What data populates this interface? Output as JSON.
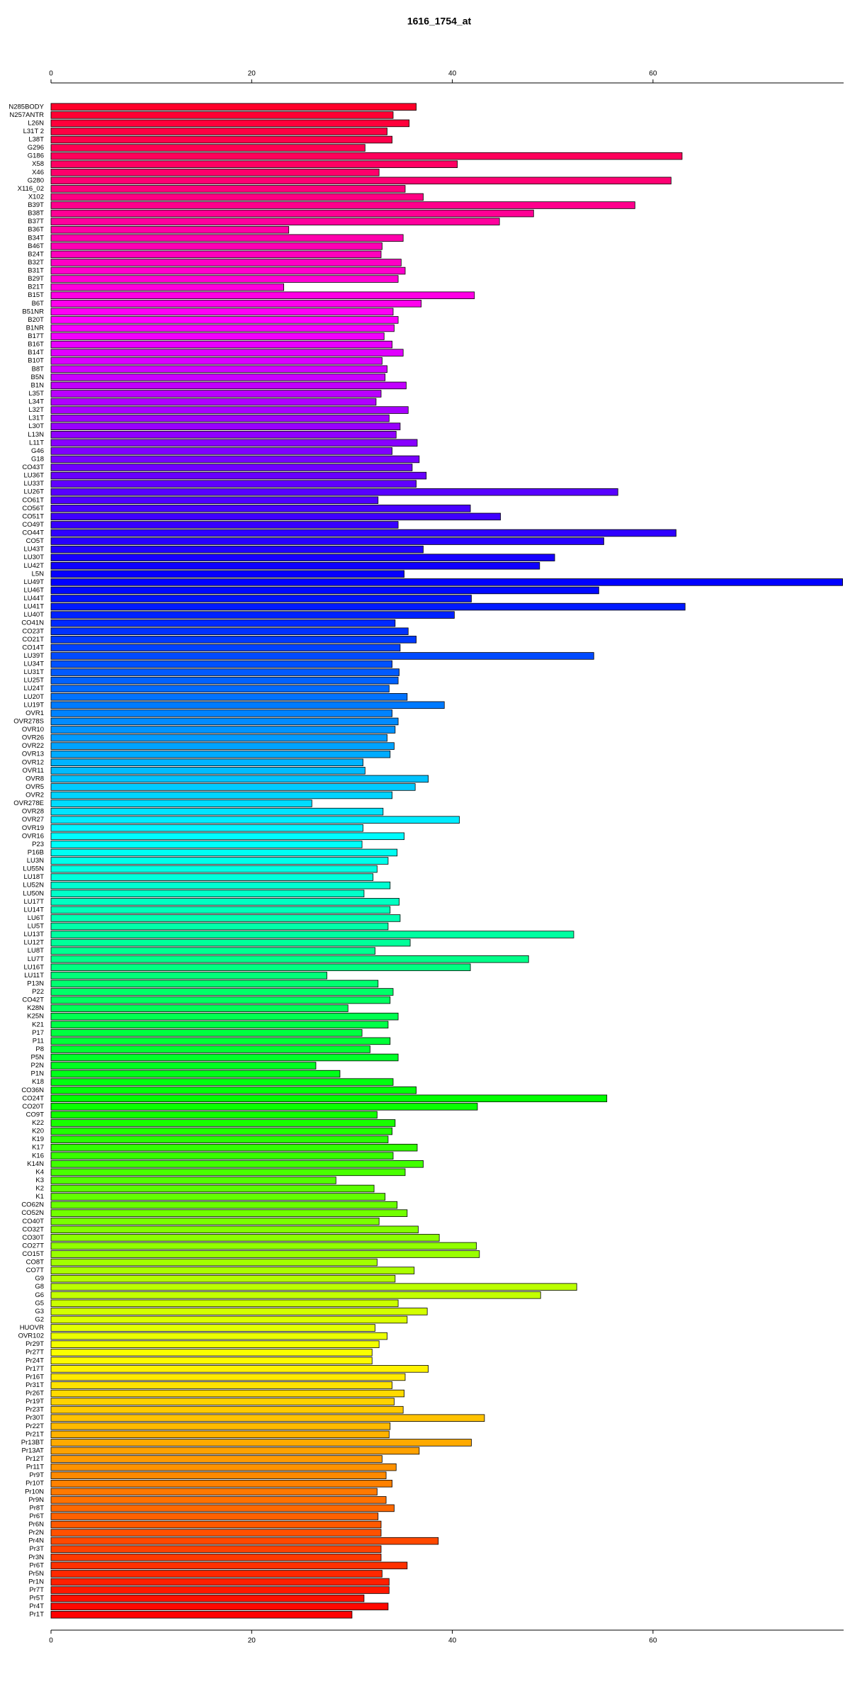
{
  "chart_data": {
    "type": "barh",
    "title": "1616_1754_at",
    "categories": [
      "N285BODY",
      "N257ANTR",
      "L26N",
      "L31T 2",
      "L38T",
      "G296",
      "G186",
      "X58",
      "X46",
      "G280",
      "X116_02",
      "X102",
      "B39T",
      "B38T",
      "B37T",
      "B36T",
      "B34T",
      "B46T",
      "B24T",
      "B32T",
      "B31T",
      "B29T",
      "B21T",
      "B15T",
      "B6T",
      "B51NR",
      "B20T",
      "B1NR",
      "B17T",
      "B16T",
      "B14T",
      "B10T",
      "B8T",
      "B5N",
      "B1N",
      "L35T",
      "L34T",
      "L32T",
      "L31T",
      "L30T",
      "L13N",
      "L11T",
      "G46",
      "G18",
      "CO43T",
      "LU36T",
      "LU33T",
      "LU26T",
      "CO61T",
      "CO56T",
      "CO51T",
      "CO49T",
      "CO44T",
      "CO5T",
      "LU43T",
      "LU30T",
      "LU42T",
      "L5N",
      "LU49T",
      "LU46T",
      "LU44T",
      "LU41T",
      "LU40T",
      "CO41N",
      "CO23T",
      "CO21T",
      "CO14T",
      "LU39T",
      "LU34T",
      "LU31T",
      "LU25T",
      "LU24T",
      "LU20T",
      "LU19T",
      "OVR1",
      "OVR278S",
      "OVR10",
      "OVR26",
      "OVR22",
      "OVR13",
      "OVR12",
      "OVR11",
      "OVR8",
      "OVR5",
      "OVR2",
      "OVR278E",
      "OVR28",
      "OVR27",
      "OVR19",
      "OVR16",
      "P23",
      "P16B",
      "LU3N",
      "LU55N",
      "LU18T",
      "LU52N",
      "LU50N",
      "LU17T",
      "LU14T",
      "LU6T",
      "LU5T",
      "LU13T",
      "LU12T",
      "LU8T",
      "LU7T",
      "LU16T",
      "LU11T",
      "P13N",
      "P22",
      "CO42T",
      "K28N",
      "K25N",
      "K21",
      "P17",
      "P11",
      "P8",
      "P5N",
      "P2N",
      "P1N",
      "K18",
      "CO36N",
      "CO24T",
      "CO20T",
      "CO9T",
      "K22",
      "K20",
      "K19",
      "K17",
      "K16",
      "K14N",
      "K4",
      "K3",
      "K2",
      "K1",
      "CO62N",
      "CO52N",
      "CO40T",
      "CO32T",
      "CO30T",
      "CO27T",
      "CO15T",
      "CO8T",
      "CO7T",
      "G9",
      "G8",
      "G6",
      "G5",
      "G3",
      "G2",
      "HUOVR",
      "OVR102",
      "Pr29T",
      "Pr27T",
      "Pr24T",
      "Pr17T",
      "Pr16T",
      "Pr31T",
      "Pr26T",
      "Pr19T",
      "Pr23T",
      "Pr30T",
      "Pr22T",
      "Pr21T",
      "Pr13BT",
      "Pr13AT",
      "Pr12T",
      "Pr11T",
      "Pr9T",
      "Pr10T",
      "Pr10N",
      "Pr9N",
      "Pr8T",
      "Pr6T",
      "Pr6N",
      "Pr2N",
      "Pr4N",
      "Pr3T",
      "Pr3N",
      "Pr6T",
      "Pr5N",
      "Pr1N",
      "Pr7T",
      "Pr5T",
      "Pr4T",
      "Pr1T"
    ],
    "values": [
      36.4,
      34.1,
      35.7,
      33.5,
      34.0,
      31.3,
      62.9,
      40.5,
      32.7,
      61.8,
      35.3,
      37.1,
      58.2,
      48.1,
      44.7,
      23.7,
      35.1,
      33.0,
      32.9,
      34.9,
      35.3,
      34.6,
      23.2,
      42.2,
      36.9,
      34.1,
      34.6,
      34.2,
      33.2,
      34.0,
      35.1,
      33.0,
      33.5,
      33.3,
      35.4,
      32.9,
      32.4,
      35.6,
      33.7,
      34.8,
      34.4,
      36.5,
      34.0,
      36.7,
      36.0,
      37.4,
      36.4,
      56.5,
      32.6,
      41.8,
      44.8,
      34.6,
      62.3,
      55.1,
      37.1,
      50.2,
      48.7,
      35.2,
      78.9,
      54.6,
      41.9,
      63.2,
      40.2,
      34.3,
      35.6,
      36.4,
      34.8,
      54.1,
      34.0,
      34.7,
      34.6,
      33.7,
      35.5,
      39.2,
      34.0,
      34.6,
      34.3,
      33.5,
      34.2,
      33.8,
      31.1,
      31.3,
      37.6,
      36.3,
      34.0,
      26.0,
      33.1,
      40.7,
      31.1,
      35.2,
      31.0,
      34.5,
      33.6,
      32.5,
      32.1,
      33.8,
      31.2,
      34.7,
      33.8,
      34.8,
      33.6,
      52.1,
      35.8,
      32.3,
      47.6,
      41.8,
      27.5,
      32.6,
      34.1,
      33.8,
      29.6,
      34.6,
      33.6,
      31.0,
      33.8,
      31.8,
      34.6,
      26.4,
      28.8,
      34.1,
      36.4,
      55.4,
      42.5,
      32.5,
      34.3,
      34.0,
      33.6,
      36.5,
      34.1,
      37.1,
      35.3,
      28.4,
      32.2,
      33.3,
      34.5,
      35.5,
      32.7,
      36.6,
      38.7,
      42.4,
      42.7,
      32.5,
      36.2,
      34.3,
      52.4,
      48.8,
      34.6,
      37.5,
      35.5,
      32.3,
      33.5,
      32.7,
      32.0,
      32.0,
      37.6,
      35.3,
      34.0,
      35.2,
      34.2,
      35.1,
      43.2,
      33.8,
      33.7,
      41.9,
      36.7,
      33.0,
      34.4,
      33.4,
      34.0,
      32.5,
      33.4,
      34.2,
      32.6,
      32.9,
      32.9,
      38.6,
      32.9,
      32.9,
      35.5,
      33.0,
      33.7,
      33.7,
      31.2,
      33.6,
      30.0
    ],
    "color_hue_range": [
      350,
      0
    ],
    "xlim": [
      0,
      79
    ],
    "xticks": [
      0,
      20,
      40,
      60
    ]
  }
}
